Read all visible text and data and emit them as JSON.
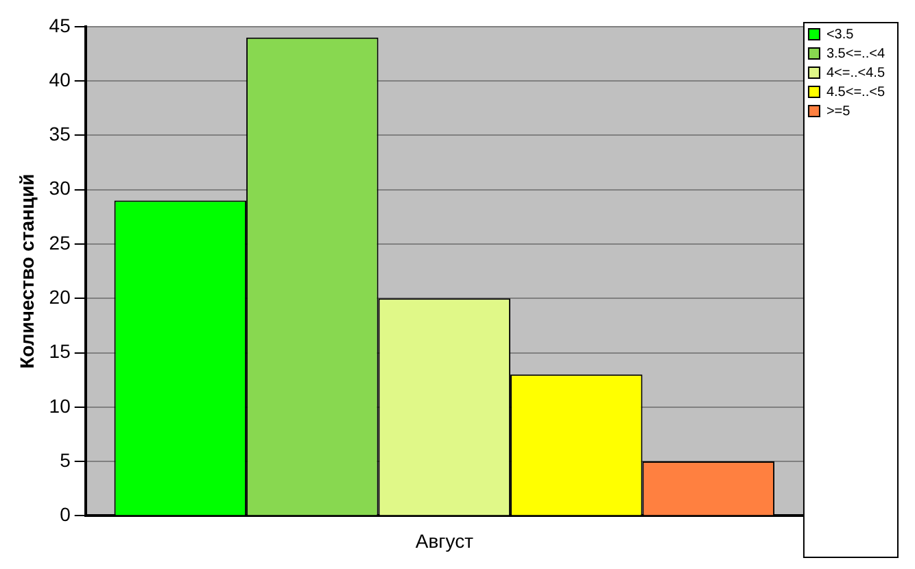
{
  "chart_data": {
    "type": "bar",
    "ylabel": "Количество станций",
    "categories": [
      "Август"
    ],
    "series": [
      {
        "name": "<3.5",
        "color": "#00ff00",
        "values": [
          29
        ]
      },
      {
        "name": "3.5<=..<4",
        "color": "#88d850",
        "values": [
          44
        ]
      },
      {
        "name": "4<=..<4.5",
        "color": "#e0f888",
        "values": [
          20
        ]
      },
      {
        "name": "4.5<=..<5",
        "color": "#ffff00",
        "values": [
          13
        ]
      },
      {
        "name": ">=5",
        "color": "#ff8040",
        "values": [
          5
        ]
      }
    ],
    "ylim": [
      0,
      45
    ],
    "yticks": [
      0,
      5,
      10,
      15,
      20,
      25,
      30,
      35,
      40,
      45
    ],
    "grid": "y",
    "legend": "top right"
  }
}
